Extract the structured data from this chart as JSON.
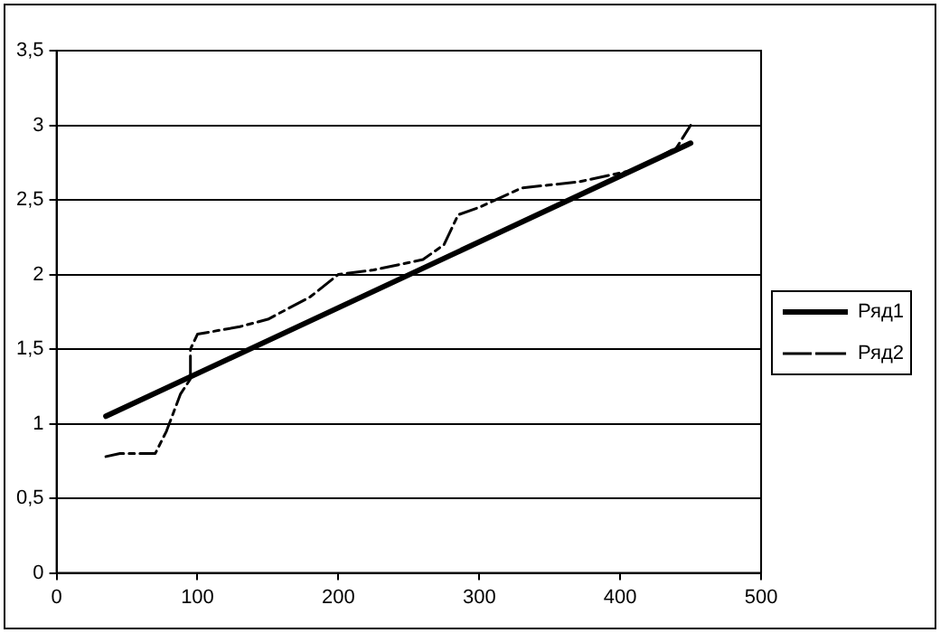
{
  "chart_data": {
    "type": "line",
    "xlim": [
      0,
      500
    ],
    "xticks": [
      0,
      100,
      200,
      300,
      400,
      500
    ],
    "ylim": [
      0,
      3.5
    ],
    "yticks": [
      0,
      {
        "value": 0.5,
        "label": "0,5"
      },
      1,
      {
        "value": 1.5,
        "label": "1,5"
      },
      2,
      {
        "value": 2.5,
        "label": "2,5"
      },
      3,
      {
        "value": 3.5,
        "label": "3,5"
      }
    ],
    "grid": "y",
    "legend": "right",
    "marker": "none",
    "series": [
      {
        "name": "Ряд1",
        "color": "#000000",
        "line_style": "solid",
        "x": [
          35,
          450
        ],
        "values": [
          1.05,
          2.88
        ]
      },
      {
        "name": "Ряд2",
        "color": "#000000",
        "line_style": "dashed",
        "x": [
          35,
          45,
          70,
          78,
          88,
          95,
          95,
          100,
          130,
          150,
          180,
          200,
          225,
          260,
          275,
          285,
          300,
          330,
          370,
          410,
          440,
          450
        ],
        "values": [
          0.78,
          0.8,
          0.8,
          0.95,
          1.2,
          1.3,
          1.5,
          1.6,
          1.65,
          1.7,
          1.85,
          2.0,
          2.03,
          2.1,
          2.2,
          2.4,
          2.45,
          2.58,
          2.62,
          2.7,
          2.85,
          3.0
        ]
      }
    ]
  }
}
